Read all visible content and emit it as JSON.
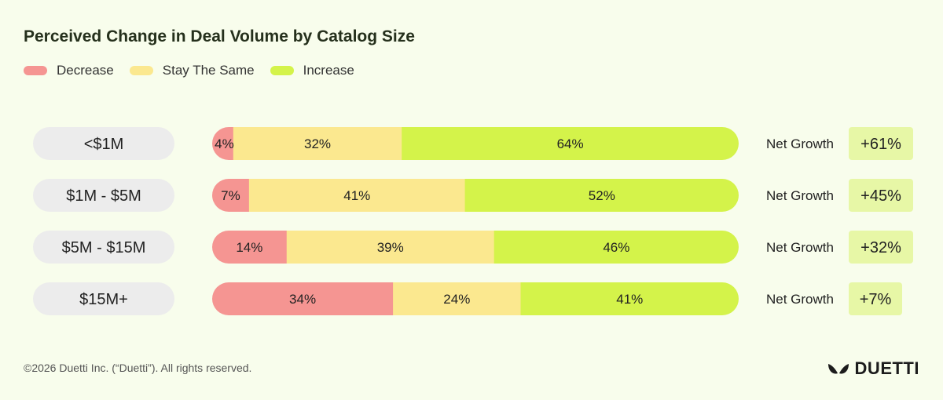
{
  "chart_data": {
    "type": "bar",
    "orientation": "horizontal",
    "stacked": true,
    "title": "Perceived Change in Deal Volume by Catalog Size",
    "legend_position": "top-left",
    "categories": [
      "<$1M",
      "$1M - $5M",
      "$5M - $15M",
      "$15M+"
    ],
    "series": [
      {
        "name": "Decrease",
        "color": "#f59592",
        "values": [
          4,
          7,
          14,
          34
        ]
      },
      {
        "name": "Stay The Same",
        "color": "#fbe88f",
        "values": [
          32,
          41,
          39,
          24
        ]
      },
      {
        "name": "Increase",
        "color": "#d4f34a",
        "values": [
          64,
          52,
          46,
          41
        ]
      }
    ],
    "value_labels": [
      [
        "4%",
        "32%",
        "64%"
      ],
      [
        "7%",
        "41%",
        "52%"
      ],
      [
        "14%",
        "39%",
        "46%"
      ],
      [
        "34%",
        "24%",
        "41%"
      ]
    ],
    "net_growth_label": "Net Growth",
    "net_growth": [
      "+61%",
      "+45%",
      "+32%",
      "+7%"
    ]
  },
  "footer": {
    "copyright": "©2026 Duetti Inc. (“Duetti”). All rights reserved.",
    "brand": "DUETTI"
  }
}
